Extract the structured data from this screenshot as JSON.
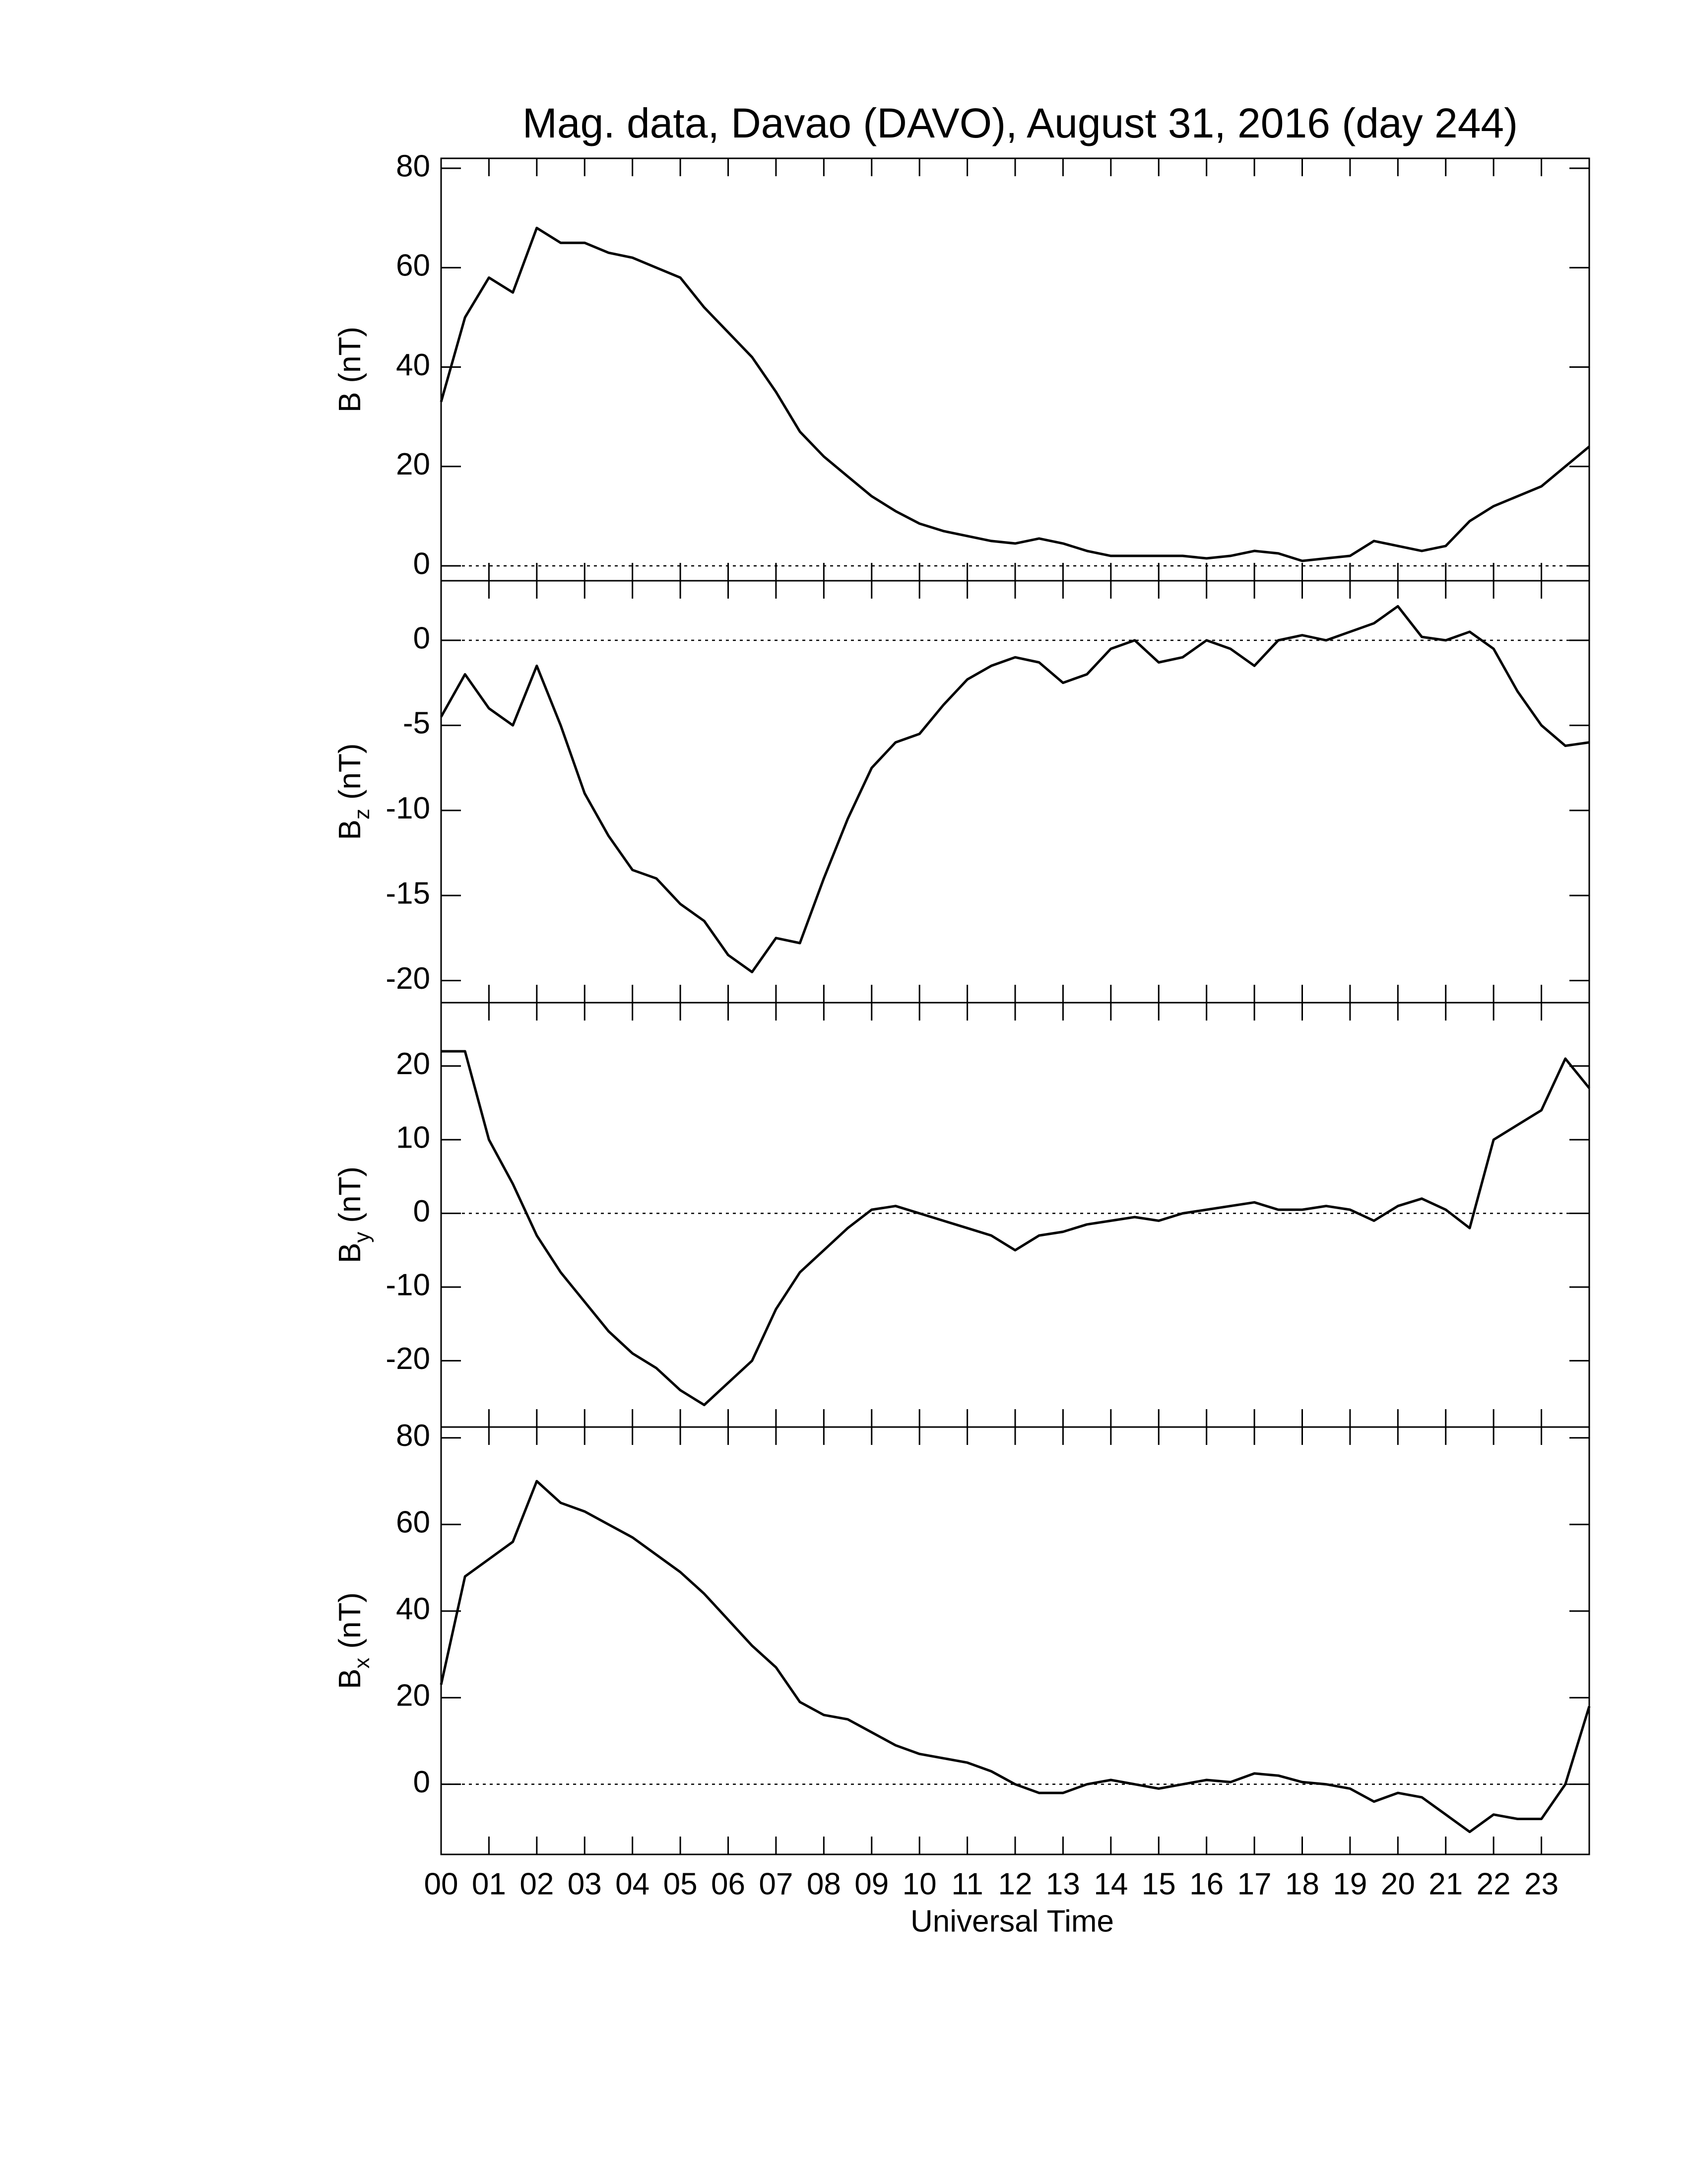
{
  "chart_data": [
    {
      "type": "line",
      "title": "Mag. data, Davao (DAVO), August 31, 2016 (day 244)",
      "ylabel": {
        "text": "B",
        "unit": "(nT)"
      },
      "x": [
        0,
        0.5,
        1,
        1.5,
        2,
        2.5,
        3,
        3.5,
        4,
        4.5,
        5,
        5.5,
        6,
        6.5,
        7,
        7.5,
        8,
        8.5,
        9,
        9.5,
        10,
        10.5,
        11,
        11.5,
        12,
        12.5,
        13,
        13.5,
        14,
        14.5,
        15,
        15.5,
        16,
        16.5,
        17,
        17.5,
        18,
        18.5,
        19,
        19.5,
        20,
        20.5,
        21,
        21.5,
        22,
        22.5,
        23,
        23.5,
        24
      ],
      "values": [
        33,
        50,
        58,
        55,
        68,
        65,
        65,
        63,
        62,
        60,
        58,
        52,
        47,
        42,
        35,
        27,
        22,
        18,
        14,
        11,
        8.5,
        7,
        6,
        5,
        4.5,
        5.5,
        4.5,
        3,
        2,
        2,
        2,
        2,
        1.5,
        2,
        3,
        2.5,
        1,
        1.5,
        2,
        5,
        4,
        3,
        4,
        9,
        12,
        14,
        16,
        20,
        24
      ],
      "color": "#000000",
      "reference_line": 0,
      "xlim": [
        0,
        24
      ],
      "xticks": [
        0,
        1,
        2,
        3,
        4,
        5,
        6,
        7,
        8,
        9,
        10,
        11,
        12,
        13,
        14,
        15,
        16,
        17,
        18,
        19,
        20,
        21,
        22,
        23
      ],
      "ylim": [
        -3,
        82
      ],
      "yticks": [
        0,
        20,
        40,
        60,
        80
      ]
    },
    {
      "type": "line",
      "ylabel": {
        "text": "B",
        "sub": "z",
        "unit": "(nT)"
      },
      "x": [
        0,
        0.5,
        1,
        1.5,
        2,
        2.5,
        3,
        3.5,
        4,
        4.5,
        5,
        5.5,
        6,
        6.5,
        7,
        7.5,
        8,
        8.5,
        9,
        9.5,
        10,
        10.5,
        11,
        11.5,
        12,
        12.5,
        13,
        13.5,
        14,
        14.5,
        15,
        15.5,
        16,
        16.5,
        17,
        17.5,
        18,
        18.5,
        19,
        19.5,
        20,
        20.5,
        21,
        21.5,
        22,
        22.5,
        23,
        23.5,
        24
      ],
      "values": [
        -4.5,
        -2,
        -4,
        -5,
        -1.5,
        -5,
        -9,
        -11.5,
        -13.5,
        -14,
        -15.5,
        -16.5,
        -18.5,
        -19.5,
        -17.5,
        -17.8,
        -14,
        -10.5,
        -7.5,
        -6,
        -5.5,
        -3.8,
        -2.3,
        -1.5,
        -1,
        -1.3,
        -2.5,
        -2,
        -0.5,
        0,
        -1.3,
        -1,
        0,
        -0.5,
        -1.5,
        0,
        0.3,
        0,
        0.5,
        1,
        2,
        0.2,
        0,
        0.5,
        -0.5,
        -3,
        -5,
        -6.2,
        -6
      ],
      "color": "#000000",
      "reference_line": 0,
      "xlim": [
        0,
        24
      ],
      "xticks": [
        0,
        1,
        2,
        3,
        4,
        5,
        6,
        7,
        8,
        9,
        10,
        11,
        12,
        13,
        14,
        15,
        16,
        17,
        18,
        19,
        20,
        21,
        22,
        23
      ],
      "ylim": [
        -21.3,
        3.5
      ],
      "yticks": [
        -20,
        -15,
        -10,
        -5,
        0
      ]
    },
    {
      "type": "line",
      "ylabel": {
        "text": "B",
        "sub": "y",
        "unit": "(nT)"
      },
      "x": [
        0,
        0.5,
        1,
        1.5,
        2,
        2.5,
        3,
        3.5,
        4,
        4.5,
        5,
        5.5,
        6,
        6.5,
        7,
        7.5,
        8,
        8.5,
        9,
        9.5,
        10,
        10.5,
        11,
        11.5,
        12,
        12.5,
        13,
        13.5,
        14,
        14.5,
        15,
        15.5,
        16,
        16.5,
        17,
        17.5,
        18,
        18.5,
        19,
        19.5,
        20,
        20.5,
        21,
        21.5,
        22,
        22.5,
        23,
        23.5,
        24
      ],
      "values": [
        22,
        22,
        10,
        4,
        -3,
        -8,
        -12,
        -16,
        -19,
        -21,
        -24,
        -26,
        -23,
        -20,
        -13,
        -8,
        -5,
        -2,
        0.5,
        1,
        0,
        -1,
        -2,
        -3,
        -5,
        -3,
        -2.5,
        -1.5,
        -1,
        -0.5,
        -1,
        0,
        0.5,
        1,
        1.5,
        0.5,
        0.5,
        1,
        0.5,
        -1,
        1,
        2,
        0.5,
        -2,
        10,
        12,
        14,
        21,
        17
      ],
      "color": "#000000",
      "reference_line": 0,
      "xlim": [
        0,
        24
      ],
      "xticks": [
        0,
        1,
        2,
        3,
        4,
        5,
        6,
        7,
        8,
        9,
        10,
        11,
        12,
        13,
        14,
        15,
        16,
        17,
        18,
        19,
        20,
        21,
        22,
        23
      ],
      "ylim": [
        -29,
        28.6
      ],
      "yticks": [
        -20,
        -10,
        0,
        10,
        20
      ]
    },
    {
      "type": "line",
      "xlabel": "Universal Time",
      "ylabel": {
        "text": "B",
        "sub": "x",
        "unit": "(nT)"
      },
      "x": [
        0,
        0.5,
        1,
        1.5,
        2,
        2.5,
        3,
        3.5,
        4,
        4.5,
        5,
        5.5,
        6,
        6.5,
        7,
        7.5,
        8,
        8.5,
        9,
        9.5,
        10,
        10.5,
        11,
        11.5,
        12,
        12.5,
        13,
        13.5,
        14,
        14.5,
        15,
        15.5,
        16,
        16.5,
        17,
        17.5,
        18,
        18.5,
        19,
        19.5,
        20,
        20.5,
        21,
        21.5,
        22,
        22.5,
        23,
        23.5,
        24
      ],
      "values": [
        23,
        48,
        52,
        56,
        70,
        65,
        63,
        60,
        57,
        53,
        49,
        44,
        38,
        32,
        27,
        19,
        16,
        15,
        12,
        9,
        7,
        6,
        5,
        3,
        0,
        -2,
        -2,
        0,
        1,
        0,
        -1,
        0,
        1,
        0.5,
        2.5,
        2,
        0.5,
        0,
        -1,
        -4,
        -2,
        -3,
        -7,
        -11,
        -7,
        -8,
        -8,
        0,
        18
      ],
      "color": "#000000",
      "reference_line": 0,
      "xlim": [
        0,
        24
      ],
      "xticks": [
        {
          "value": 0,
          "label": "00"
        },
        {
          "value": 1,
          "label": "01"
        },
        {
          "value": 2,
          "label": "02"
        },
        {
          "value": 3,
          "label": "03"
        },
        {
          "value": 4,
          "label": "04"
        },
        {
          "value": 5,
          "label": "05"
        },
        {
          "value": 6,
          "label": "06"
        },
        {
          "value": 7,
          "label": "07"
        },
        {
          "value": 8,
          "label": "08"
        },
        {
          "value": 9,
          "label": "09"
        },
        10,
        11,
        12,
        13,
        14,
        15,
        16,
        17,
        18,
        19,
        20,
        21,
        22,
        23
      ],
      "ylim": [
        -16.2,
        82.5
      ],
      "yticks": [
        0,
        20,
        40,
        60,
        80
      ]
    }
  ]
}
